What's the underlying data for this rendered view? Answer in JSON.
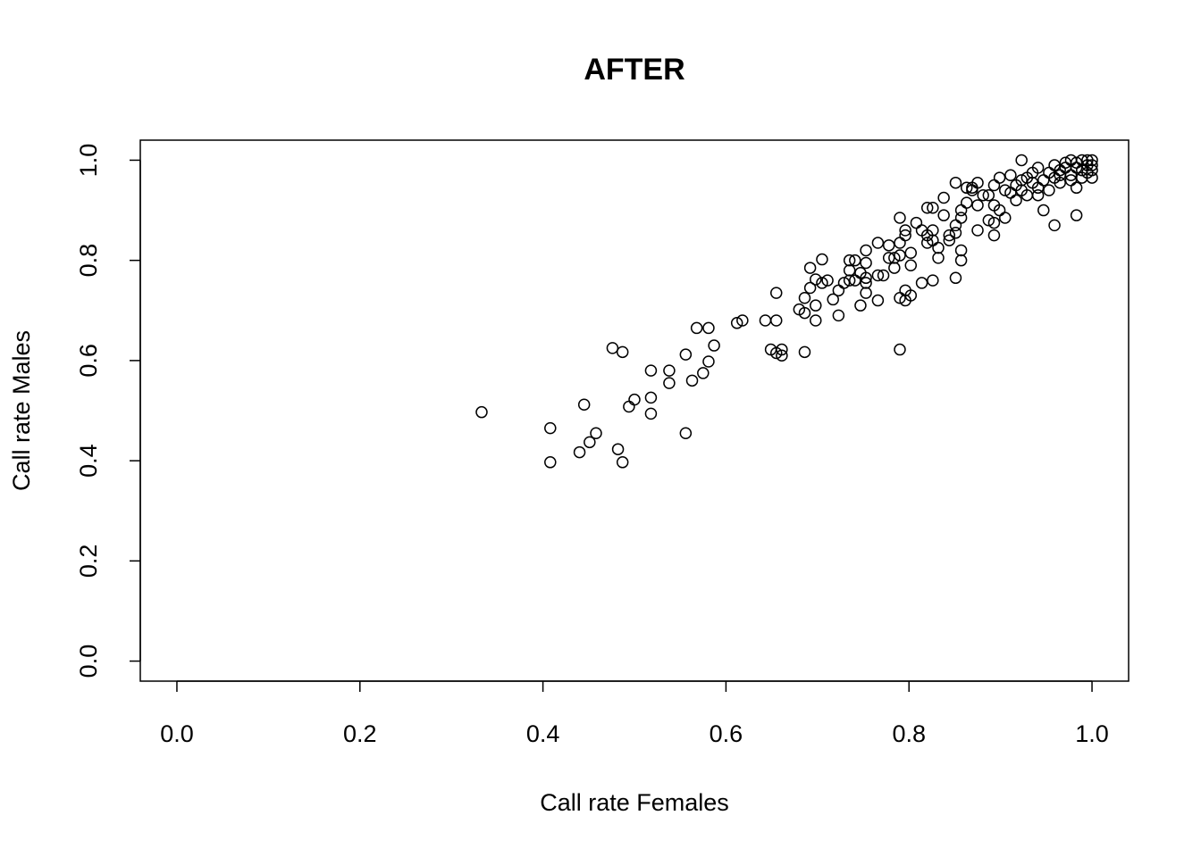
{
  "chart_data": {
    "type": "scatter",
    "title": "AFTER",
    "x_label": "Call rate Females",
    "y_label": "Call rate Males",
    "xlim": [
      -0.04,
      1.04
    ],
    "ylim": [
      -0.04,
      1.04
    ],
    "xticks": [
      {
        "value": 0,
        "label": "0.0"
      },
      0.2,
      0.4,
      0.6,
      0.8,
      {
        "value": 1,
        "label": "1.0"
      }
    ],
    "yticks": [
      {
        "value": 0,
        "label": "0.0"
      },
      0.2,
      0.4,
      0.6,
      0.8,
      {
        "value": 1,
        "label": "1.0"
      }
    ],
    "series": [
      {
        "color": "#000000",
        "x": [
          0.333,
          0.408,
          0.408,
          0.44,
          0.445,
          0.451,
          0.458,
          0.476,
          0.482,
          0.487,
          0.487,
          0.494,
          0.5,
          0.518,
          0.518,
          0.518,
          0.538,
          0.538,
          0.556,
          0.556,
          0.563,
          0.568,
          0.575,
          0.581,
          0.581,
          0.587,
          0.612,
          0.618,
          0.643,
          0.649,
          0.655,
          0.655,
          0.655,
          0.661,
          0.661,
          0.68,
          0.686,
          0.686,
          0.686,
          0.692,
          0.692,
          0.698,
          0.698,
          0.698,
          0.705,
          0.705,
          0.711,
          0.717,
          0.723,
          0.723,
          0.729,
          0.735,
          0.735,
          0.735,
          0.741,
          0.741,
          0.747,
          0.747,
          0.753,
          0.753,
          0.753,
          0.753,
          0.753,
          0.766,
          0.766,
          0.766,
          0.772,
          0.778,
          0.778,
          0.784,
          0.784,
          0.79,
          0.79,
          0.79,
          0.79,
          0.79,
          0.796,
          0.796,
          0.796,
          0.796,
          0.802,
          0.802,
          0.802,
          0.808,
          0.814,
          0.814,
          0.82,
          0.82,
          0.82,
          0.826,
          0.826,
          0.826,
          0.826,
          0.832,
          0.832,
          0.838,
          0.838,
          0.844,
          0.844,
          0.851,
          0.851,
          0.851,
          0.851,
          0.857,
          0.857,
          0.857,
          0.857,
          0.863,
          0.863,
          0.869,
          0.869,
          0.875,
          0.875,
          0.875,
          0.881,
          0.887,
          0.887,
          0.893,
          0.893,
          0.893,
          0.893,
          0.899,
          0.899,
          0.905,
          0.905,
          0.911,
          0.911,
          0.917,
          0.917,
          0.923,
          0.923,
          0.923,
          0.929,
          0.935,
          0.935,
          0.941,
          0.941,
          0.947,
          0.947,
          0.953,
          0.959,
          0.959,
          0.959,
          0.965,
          0.965,
          0.971,
          0.971,
          0.977,
          0.977,
          0.983,
          0.983,
          0.983,
          0.983,
          0.989,
          0.989,
          0.995,
          0.995,
          0.995,
          1.0,
          1.0,
          1.0,
          1.0,
          0.929,
          0.941,
          0.953,
          0.965,
          0.977,
          0.989
        ],
        "values": [
          0.497,
          0.465,
          0.397,
          0.417,
          0.512,
          0.437,
          0.455,
          0.625,
          0.423,
          0.617,
          0.397,
          0.508,
          0.522,
          0.58,
          0.526,
          0.494,
          0.58,
          0.555,
          0.612,
          0.455,
          0.56,
          0.665,
          0.575,
          0.665,
          0.598,
          0.63,
          0.675,
          0.68,
          0.68,
          0.622,
          0.735,
          0.615,
          0.68,
          0.61,
          0.622,
          0.702,
          0.725,
          0.617,
          0.695,
          0.785,
          0.745,
          0.762,
          0.71,
          0.68,
          0.802,
          0.755,
          0.76,
          0.722,
          0.69,
          0.74,
          0.755,
          0.8,
          0.78,
          0.76,
          0.8,
          0.76,
          0.71,
          0.775,
          0.82,
          0.795,
          0.755,
          0.735,
          0.765,
          0.835,
          0.77,
          0.72,
          0.77,
          0.83,
          0.805,
          0.785,
          0.805,
          0.885,
          0.835,
          0.81,
          0.725,
          0.622,
          0.86,
          0.85,
          0.74,
          0.72,
          0.79,
          0.815,
          0.73,
          0.875,
          0.86,
          0.755,
          0.905,
          0.85,
          0.835,
          0.905,
          0.86,
          0.84,
          0.76,
          0.825,
          0.805,
          0.925,
          0.89,
          0.85,
          0.84,
          0.955,
          0.87,
          0.855,
          0.765,
          0.9,
          0.885,
          0.82,
          0.8,
          0.945,
          0.915,
          0.945,
          0.94,
          0.955,
          0.91,
          0.86,
          0.93,
          0.88,
          0.93,
          0.95,
          0.91,
          0.875,
          0.85,
          0.965,
          0.9,
          0.94,
          0.885,
          0.97,
          0.935,
          0.95,
          0.92,
          0.96,
          0.94,
          1.0,
          0.93,
          0.975,
          0.955,
          0.985,
          0.945,
          0.96,
          0.9,
          0.975,
          0.99,
          0.965,
          0.87,
          0.98,
          0.955,
          0.995,
          0.985,
          1.0,
          0.97,
          0.995,
          0.985,
          0.945,
          0.89,
          1.0,
          0.98,
          1.0,
          0.99,
          0.975,
          1.0,
          0.99,
          0.98,
          0.965,
          0.965,
          0.93,
          0.94,
          0.97,
          0.96,
          0.965
        ]
      }
    ]
  }
}
